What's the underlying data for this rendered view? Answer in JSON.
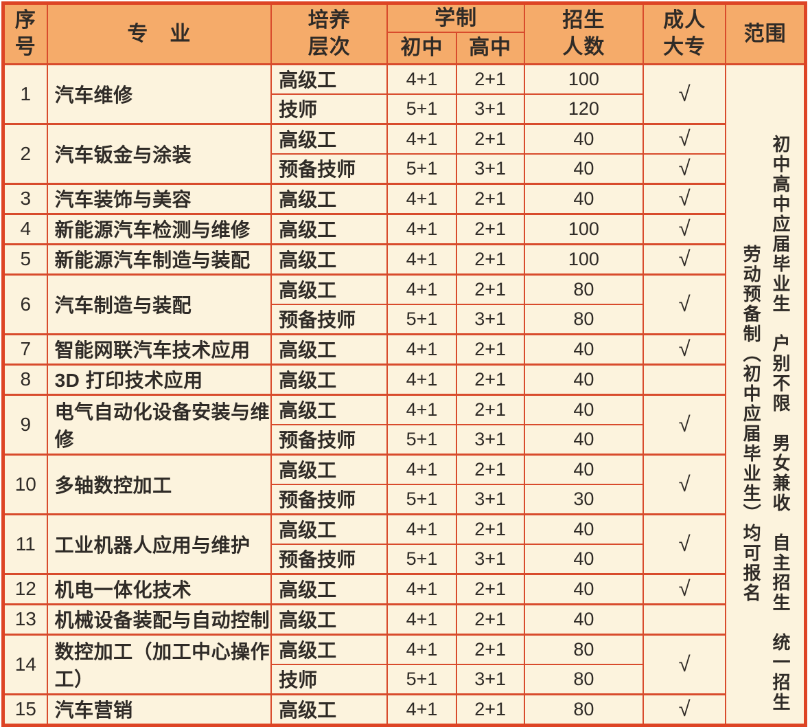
{
  "table": {
    "header": {
      "serial": "序\n号",
      "major": "专　业",
      "training_level": "培养\n层次",
      "schooling": "学制",
      "junior_high": "初中",
      "senior_high": "高中",
      "enrollment": "招生\n人数",
      "adult_college": "成人\n大专",
      "scope": "范围"
    },
    "rows": [
      {
        "no": "1",
        "major": "汽车维修",
        "subs": [
          {
            "level": "高级工",
            "junior": "4+1",
            "senior": "2+1",
            "count": "100"
          },
          {
            "level": "技师",
            "junior": "5+1",
            "senior": "3+1",
            "count": "120"
          }
        ],
        "adult": [
          {
            "mark": "√",
            "span": 2
          }
        ]
      },
      {
        "no": "2",
        "major": "汽车钣金与涂装",
        "subs": [
          {
            "level": "高级工",
            "junior": "4+1",
            "senior": "2+1",
            "count": "40"
          },
          {
            "level": "预备技师",
            "junior": "5+1",
            "senior": "3+1",
            "count": "40"
          }
        ],
        "adult": [
          {
            "mark": "√",
            "span": 1
          },
          {
            "mark": "√",
            "span": 1
          }
        ]
      },
      {
        "no": "3",
        "major": "汽车装饰与美容",
        "subs": [
          {
            "level": "高级工",
            "junior": "4+1",
            "senior": "2+1",
            "count": "40"
          }
        ],
        "adult": [
          {
            "mark": "√",
            "span": 1
          }
        ]
      },
      {
        "no": "4",
        "major": "新能源汽车检测与维修",
        "subs": [
          {
            "level": "高级工",
            "junior": "4+1",
            "senior": "2+1",
            "count": "100"
          }
        ],
        "adult": [
          {
            "mark": "√",
            "span": 1
          }
        ]
      },
      {
        "no": "5",
        "major": "新能源汽车制造与装配",
        "subs": [
          {
            "level": "高级工",
            "junior": "4+1",
            "senior": "2+1",
            "count": "100"
          }
        ],
        "adult": [
          {
            "mark": "√",
            "span": 1
          }
        ]
      },
      {
        "no": "6",
        "major": "汽车制造与装配",
        "subs": [
          {
            "level": "高级工",
            "junior": "4+1",
            "senior": "2+1",
            "count": "80"
          },
          {
            "level": "预备技师",
            "junior": "5+1",
            "senior": "3+1",
            "count": "80"
          }
        ],
        "adult": [
          {
            "mark": "√",
            "span": 2
          }
        ]
      },
      {
        "no": "7",
        "major": "智能网联汽车技术应用",
        "subs": [
          {
            "level": "高级工",
            "junior": "4+1",
            "senior": "2+1",
            "count": "40"
          }
        ],
        "adult": [
          {
            "mark": "√",
            "span": 1
          }
        ]
      },
      {
        "no": "8",
        "major": "3D 打印技术应用",
        "subs": [
          {
            "level": "高级工",
            "junior": "4+1",
            "senior": "2+1",
            "count": "40"
          }
        ],
        "adult": [
          {
            "mark": "",
            "span": 1
          }
        ]
      },
      {
        "no": "9",
        "major": "电气自动化设备安装与维修",
        "subs": [
          {
            "level": "高级工",
            "junior": "4+1",
            "senior": "2+1",
            "count": "40"
          },
          {
            "level": "预备技师",
            "junior": "5+1",
            "senior": "3+1",
            "count": "40"
          }
        ],
        "adult": [
          {
            "mark": "√",
            "span": 2
          }
        ]
      },
      {
        "no": "10",
        "major": "多轴数控加工",
        "subs": [
          {
            "level": "高级工",
            "junior": "4+1",
            "senior": "2+1",
            "count": "40"
          },
          {
            "level": "预备技师",
            "junior": "5+1",
            "senior": "3+1",
            "count": "30"
          }
        ],
        "adult": [
          {
            "mark": "√",
            "span": 2
          }
        ]
      },
      {
        "no": "11",
        "major": "工业机器人应用与维护",
        "subs": [
          {
            "level": "高级工",
            "junior": "4+1",
            "senior": "2+1",
            "count": "40"
          },
          {
            "level": "预备技师",
            "junior": "5+1",
            "senior": "3+1",
            "count": "40"
          }
        ],
        "adult": [
          {
            "mark": "√",
            "span": 2
          }
        ]
      },
      {
        "no": "12",
        "major": "机电一体化技术",
        "subs": [
          {
            "level": "高级工",
            "junior": "4+1",
            "senior": "2+1",
            "count": "40"
          }
        ],
        "adult": [
          {
            "mark": "√",
            "span": 1
          }
        ]
      },
      {
        "no": "13",
        "major": "机械设备装配与自动控制",
        "subs": [
          {
            "level": "高级工",
            "junior": "4+1",
            "senior": "2+1",
            "count": "40"
          }
        ],
        "adult": [
          {
            "mark": "",
            "span": 1
          }
        ]
      },
      {
        "no": "14",
        "major": "数控加工（加工中心操作工）",
        "subs": [
          {
            "level": "高级工",
            "junior": "4+1",
            "senior": "2+1",
            "count": "80"
          },
          {
            "level": "技师",
            "junior": "5+1",
            "senior": "3+1",
            "count": "80"
          }
        ],
        "adult": [
          {
            "mark": "√",
            "span": 2
          }
        ]
      },
      {
        "no": "15",
        "major": "汽车营销",
        "subs": [
          {
            "level": "高级工",
            "junior": "4+1",
            "senior": "2+1",
            "count": "80"
          }
        ],
        "adult": [
          {
            "mark": "√",
            "span": 1
          }
        ]
      }
    ],
    "scope": {
      "right_line": "初中高中应届毕业生　户别不限　男女兼收　自主招生　统一招生",
      "left_line": "劳动预备制（初中应届毕业生）均可报名"
    },
    "colors": {
      "border_red": "#d84b2c",
      "outer_border_red": "#dd4425",
      "header_orange": "#f5ab6a",
      "body_cream": "#fcf3dd",
      "text": "#2f2b27"
    }
  }
}
